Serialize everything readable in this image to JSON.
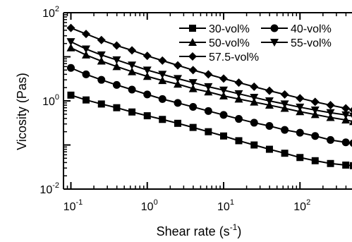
{
  "chart_data": {
    "type": "line",
    "title": "",
    "xlabel": "Shear rate (s",
    "xlabel_sup": "-1",
    "xlabel_end": ")",
    "ylabel": "Vicosity (Pas)",
    "xscale": "log",
    "yscale": "log",
    "xlim": [
      0.08,
      480
    ],
    "ylim": [
      0.01,
      100
    ],
    "grid": false,
    "legend_position": "top-right",
    "x_ticks": [
      {
        "value": 0.1,
        "base": "10",
        "exp": "-1"
      },
      {
        "value": 1,
        "base": "10",
        "exp": "0"
      },
      {
        "value": 10,
        "base": "10",
        "exp": "1"
      },
      {
        "value": 100,
        "base": "10",
        "exp": "2"
      }
    ],
    "y_ticks": [
      {
        "value": 0.01,
        "base": "10",
        "exp": "-2"
      },
      {
        "value": 1,
        "base": "10",
        "exp": "0"
      },
      {
        "value": 100,
        "base": "10",
        "exp": "2"
      }
    ],
    "series": [
      {
        "name": "30-vol%",
        "marker": "square",
        "x": [
          0.1,
          0.158,
          0.251,
          0.398,
          0.631,
          1,
          1.58,
          2.51,
          3.98,
          6.31,
          10,
          15.8,
          25.1,
          39.8,
          63.1,
          100,
          158,
          251,
          398,
          500
        ],
        "y": [
          1.35,
          1.05,
          0.85,
          0.7,
          0.56,
          0.46,
          0.38,
          0.31,
          0.25,
          0.2,
          0.16,
          0.125,
          0.1,
          0.08,
          0.065,
          0.052,
          0.044,
          0.038,
          0.035,
          0.034
        ]
      },
      {
        "name": "40-vol%",
        "marker": "circle",
        "x": [
          0.1,
          0.158,
          0.251,
          0.398,
          0.631,
          1,
          1.58,
          2.51,
          3.98,
          6.31,
          10,
          15.8,
          25.1,
          39.8,
          63.1,
          100,
          158,
          251,
          398,
          500
        ],
        "y": [
          5.6,
          4.0,
          3.0,
          2.3,
          1.8,
          1.4,
          1.1,
          0.9,
          0.73,
          0.59,
          0.48,
          0.39,
          0.32,
          0.27,
          0.22,
          0.19,
          0.16,
          0.13,
          0.115,
          0.11
        ]
      },
      {
        "name": "50-vol%",
        "marker": "triangle-up",
        "x": [
          0.1,
          0.158,
          0.251,
          0.398,
          0.631,
          1,
          1.58,
          2.51,
          3.98,
          6.31,
          10,
          15.8,
          25.1,
          39.8,
          63.1,
          100,
          158,
          251,
          398,
          500
        ],
        "y": [
          16,
          11,
          8.0,
          6.0,
          4.6,
          3.6,
          2.9,
          2.4,
          1.9,
          1.6,
          1.3,
          1.1,
          0.94,
          0.8,
          0.68,
          0.57,
          0.49,
          0.42,
          0.37,
          0.34
        ]
      },
      {
        "name": "55-vol%",
        "marker": "triangle-down",
        "x": [
          0.1,
          0.158,
          0.251,
          0.398,
          0.631,
          1,
          1.58,
          2.51,
          3.98,
          6.31,
          10,
          15.8,
          25.1,
          39.8,
          63.1,
          100,
          158,
          251,
          398,
          500
        ],
        "y": [
          22,
          15,
          11,
          8.5,
          6.5,
          5.0,
          4.0,
          3.2,
          2.6,
          2.1,
          1.75,
          1.45,
          1.2,
          1.0,
          0.85,
          0.72,
          0.62,
          0.54,
          0.48,
          0.45
        ]
      },
      {
        "name": "57.5-vol%",
        "marker": "diamond",
        "x": [
          0.1,
          0.158,
          0.251,
          0.398,
          0.631,
          1,
          1.58,
          2.51,
          3.98,
          6.31,
          10,
          15.8,
          25.1,
          39.8,
          63.1,
          100,
          158,
          251,
          398,
          500
        ],
        "y": [
          45,
          33,
          24,
          18,
          14,
          10.5,
          8.2,
          6.4,
          5.0,
          4.0,
          3.2,
          2.6,
          2.1,
          1.7,
          1.4,
          1.15,
          0.95,
          0.8,
          0.68,
          0.62
        ]
      }
    ]
  }
}
